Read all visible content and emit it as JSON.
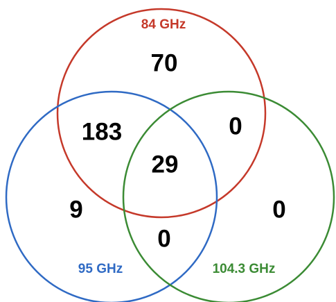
{
  "sets": [
    {
      "label": "84 GHz",
      "color": "#c5392a"
    },
    {
      "label": "95 GHz",
      "color": "#2f6ac4"
    },
    {
      "label": "104.3 GHz",
      "color": "#3b8b34"
    }
  ],
  "regions": [
    70,
    183,
    0,
    29,
    9,
    0,
    0
  ]
}
